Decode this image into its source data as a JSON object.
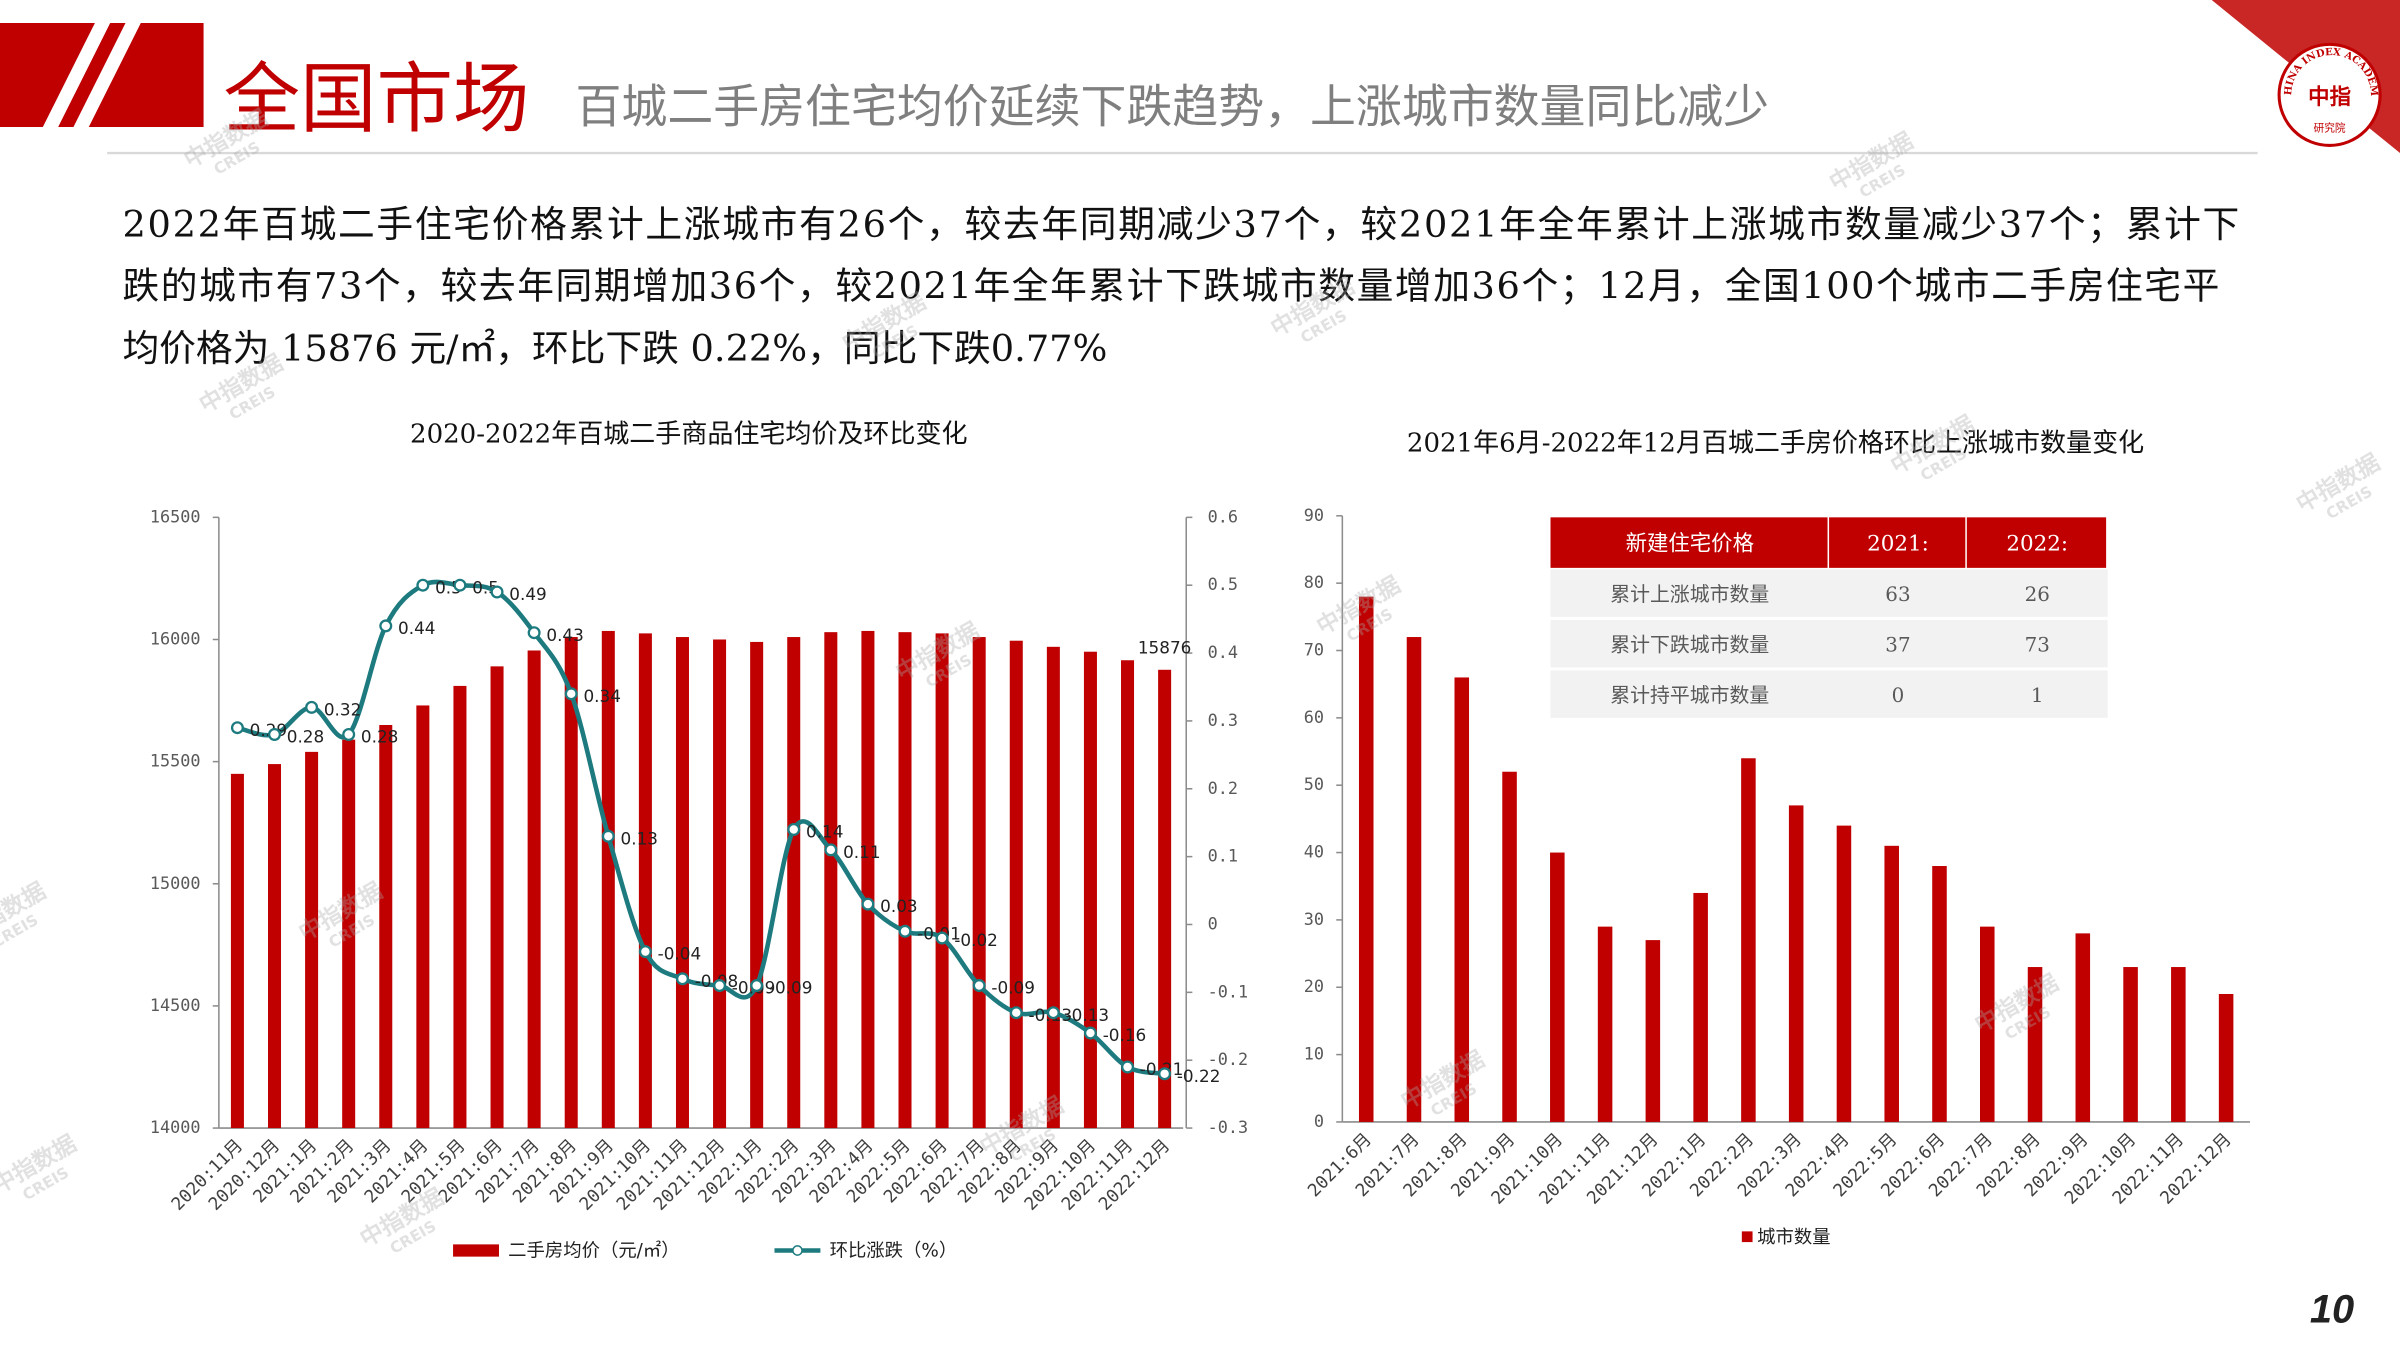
{
  "header": {
    "title": "全国市场",
    "subtitle": "百城二手房住宅均价延续下跌趋势，上涨城市数量同比减少"
  },
  "paragraph": [
    "2022年百城二手住宅价格累计上涨城市有26个，较去年同期减少37个，较2021年全年累计上涨城市数量减少37个；累计下",
    "跌的城市有73个，较去年同期增加36个，较2021年全年累计下跌城市数量增加36个；12月，全国100个城市二手房住宅平",
    "均价格为 15876 元/㎡，环比下跌 0.22%，同比下跌0.77%"
  ],
  "logo": {
    "ring": "CHINA INDEX ACADEMY",
    "center": "中指",
    "bottom": "研究院"
  },
  "watermark": {
    "cn": "中指数据",
    "en": "CREIS"
  },
  "page_number": "10",
  "chart_data": [
    {
      "type": "combo",
      "title": "2020-2022年百城二手商品住宅均价及环比变化",
      "categories": [
        "2020:11月",
        "2020:12月",
        "2021:1月",
        "2021:2月",
        "2021:3月",
        "2021:4月",
        "2021:5月",
        "2021:6月",
        "2021:7月",
        "2021:8月",
        "2021:9月",
        "2021:10月",
        "2021:11月",
        "2021:12月",
        "2022:1月",
        "2022:2月",
        "2022:3月",
        "2022:4月",
        "2022:5月",
        "2022:6月",
        "2022:7月",
        "2022:8月",
        "2022:9月",
        "2022:10月",
        "2022:11月",
        "2022:12月"
      ],
      "series": [
        {
          "name": "二手房均价（元/㎡）",
          "type": "bar",
          "color": "#c00000",
          "values": [
            15450,
            15490,
            15540,
            15590,
            15650,
            15730,
            15810,
            15890,
            15955,
            16010,
            16035,
            16025,
            16010,
            16000,
            15990,
            16010,
            16030,
            16035,
            16030,
            16025,
            16010,
            15995,
            15970,
            15950,
            15915,
            15876
          ],
          "value_labels": [
            null,
            null,
            null,
            null,
            null,
            null,
            null,
            null,
            null,
            null,
            null,
            null,
            null,
            null,
            null,
            null,
            null,
            null,
            null,
            null,
            null,
            null,
            null,
            null,
            null,
            "15876"
          ]
        },
        {
          "name": "环比涨跌（%）",
          "type": "line",
          "axis": "y2",
          "color": "#1d7b7f",
          "values": [
            0.29,
            0.28,
            0.32,
            0.28,
            0.44,
            0.5,
            0.5,
            0.49,
            0.43,
            0.34,
            0.13,
            -0.04,
            -0.08,
            -0.09,
            -0.09,
            0.14,
            0.11,
            0.03,
            -0.01,
            -0.02,
            -0.09,
            -0.13,
            -0.13,
            -0.16,
            -0.21,
            -0.22
          ]
        }
      ],
      "ylim": [
        14000,
        16500
      ],
      "yticks": [
        14000,
        14500,
        15000,
        15500,
        16000,
        16500
      ],
      "y2lim": [
        -0.3,
        0.6
      ],
      "y2ticks": [
        -0.3,
        -0.2,
        -0.1,
        0,
        0.1,
        0.2,
        0.3,
        0.4,
        0.5,
        0.6
      ]
    },
    {
      "type": "bar",
      "title": "2021年6月-2022年12月百城二手房价格环比上涨城市数量变化",
      "categories": [
        "2021:6月",
        "2021:7月",
        "2021:8月",
        "2021:9月",
        "2021:10月",
        "2021:11月",
        "2021:12月",
        "2022:1月",
        "2022:2月",
        "2022:3月",
        "2022:4月",
        "2022:5月",
        "2022:6月",
        "2022:7月",
        "2022:8月",
        "2022:9月",
        "2022:10月",
        "2022:11月",
        "2022:12月"
      ],
      "series": [
        {
          "name": "城市数量",
          "color": "#c00000",
          "values": [
            78,
            72,
            66,
            52,
            40,
            29,
            27,
            34,
            54,
            47,
            44,
            41,
            38,
            29,
            23,
            28,
            23,
            23,
            19
          ]
        }
      ],
      "ylim": [
        0,
        90
      ],
      "yticks": [
        0,
        10,
        20,
        30,
        40,
        50,
        60,
        70,
        80,
        90
      ],
      "table": {
        "header": [
          "新建住宅价格",
          "2021:",
          "2022:"
        ],
        "rows": [
          [
            "累计上涨城市数量",
            63,
            26
          ],
          [
            "累计下跌城市数量",
            37,
            73
          ],
          [
            "累计持平城市数量",
            0,
            1
          ]
        ]
      }
    }
  ]
}
